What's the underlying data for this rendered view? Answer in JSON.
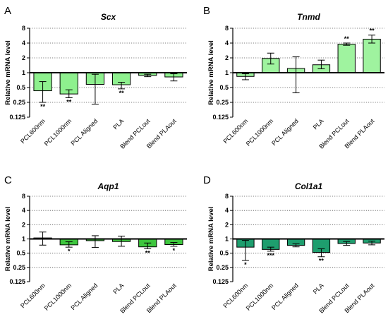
{
  "chart_data": [
    {
      "panel": "A",
      "title": "Scx",
      "type": "bar",
      "ylabel": "Relative mRNA level",
      "yscale": "log2",
      "ylim": [
        0.125,
        8
      ],
      "ytick_labels": [
        "0.125",
        "0.25",
        "0.5",
        "1",
        "2",
        "4",
        "8"
      ],
      "grid": "dotted horizontal",
      "color": "#8ef08e",
      "categories": [
        "PCL600nm",
        "PCL1000nm",
        "PCL Aligned",
        "PLA",
        "Blend PCLout",
        "Blend PLAout"
      ],
      "values": [
        0.43,
        0.37,
        0.58,
        0.57,
        0.88,
        0.82
      ],
      "error_low": [
        0.25,
        0.31,
        0.23,
        0.47,
        0.83,
        0.68
      ],
      "error_high": [
        0.66,
        0.45,
        0.93,
        0.64,
        0.93,
        0.95
      ],
      "significance": [
        "**",
        "**",
        "",
        "**",
        "",
        ""
      ]
    },
    {
      "panel": "B",
      "title": "Tnmd",
      "type": "bar",
      "ylabel": "Relative mRNA level",
      "yscale": "log2",
      "ylim": [
        0.125,
        8
      ],
      "ytick_labels": [
        "0.125",
        "0.25",
        "0.5",
        "1",
        "2",
        "4",
        "8"
      ],
      "grid": "dotted horizontal",
      "color": "#9ff39f",
      "categories": [
        "PCL600nm",
        "PCL1000nm",
        "PCL Aligned",
        "PLA",
        "Blend PCLout",
        "Blend PLAout"
      ],
      "values": [
        0.84,
        1.95,
        1.22,
        1.45,
        3.8,
        4.8
      ],
      "error_low": [
        0.72,
        1.5,
        0.39,
        1.2,
        3.6,
        4.0
      ],
      "error_high": [
        0.95,
        2.5,
        2.1,
        1.8,
        4.0,
        5.8
      ],
      "significance": [
        "",
        "",
        "",
        "",
        "**",
        "**"
      ]
    },
    {
      "panel": "C",
      "title": "Aqp1",
      "type": "bar",
      "ylabel": "Relative mRNA level",
      "yscale": "log2",
      "ylim": [
        0.125,
        8
      ],
      "ytick_labels": [
        "0.125",
        "0.25",
        "0.5",
        "1",
        "2",
        "4",
        "8"
      ],
      "grid": "dotted horizontal",
      "color": "#3ec63e",
      "categories": [
        "PCL600nm",
        "PCL1000nm",
        "PCL Aligned",
        "PLA",
        "Blend PCLout",
        "Blend PLAout"
      ],
      "values": [
        1.05,
        0.75,
        0.92,
        0.88,
        0.68,
        0.76
      ],
      "error_low": [
        0.74,
        0.67,
        0.66,
        0.7,
        0.62,
        0.7
      ],
      "error_high": [
        1.4,
        0.87,
        1.17,
        1.15,
        0.82,
        0.84
      ],
      "significance": [
        "",
        "*",
        "",
        "",
        "**",
        "*"
      ]
    },
    {
      "panel": "D",
      "title": "Col1a1",
      "type": "bar",
      "ylabel": "Relative mRNA level",
      "yscale": "log2",
      "ylim": [
        0.125,
        8
      ],
      "ytick_labels": [
        "0.125",
        "0.25",
        "0.5",
        "1",
        "2",
        "4",
        "8"
      ],
      "grid": "dotted horizontal",
      "color": "#1e9e6e",
      "categories": [
        "PCL600nm",
        "PCL1000nm",
        "PCL Aligned",
        "PLA",
        "Blend PCLout",
        "Blend PLAout"
      ],
      "values": [
        0.67,
        0.6,
        0.73,
        0.52,
        0.8,
        0.82
      ],
      "error_low": [
        0.35,
        0.55,
        0.68,
        0.42,
        0.73,
        0.75
      ],
      "error_high": [
        0.93,
        0.67,
        0.79,
        0.62,
        0.88,
        0.9
      ],
      "significance": [
        "*",
        "***",
        "",
        "**",
        "",
        ""
      ]
    }
  ]
}
